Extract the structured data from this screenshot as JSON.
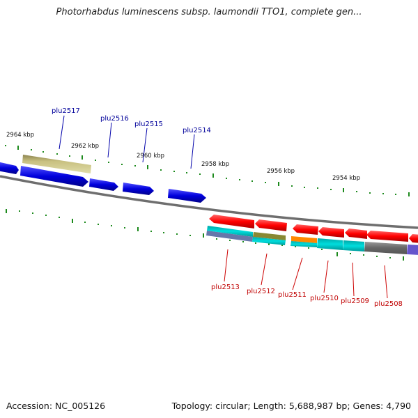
{
  "header": {
    "title": "Photorhabdus luminescens subsp. laumondii TTO1, complete gen..."
  },
  "footer": {
    "accession": "Accession: NC_005126",
    "summary": "Topology: circular; Length: 5,688,987 bp; Genes: 4,790"
  },
  "map": {
    "kbp_labels": [
      {
        "text": "2964 kbp"
      },
      {
        "text": "2962 kbp"
      },
      {
        "text": "2960 kbp"
      },
      {
        "text": "2958 kbp"
      },
      {
        "text": "2956 kbp"
      },
      {
        "text": "2954 kbp"
      }
    ],
    "forward_genes": [
      {
        "label": "plu2517",
        "color": "#0000dd"
      },
      {
        "label": "plu2516",
        "color": "#0000dd"
      },
      {
        "label": "plu2515",
        "color": "#0000dd"
      },
      {
        "label": "plu2514",
        "color": "#0000dd"
      }
    ],
    "reverse_genes": [
      {
        "label": "plu2513",
        "color": "#ff0000"
      },
      {
        "label": "plu2512",
        "color": "#ff0000"
      },
      {
        "label": "plu2511",
        "color": "#ff0000"
      },
      {
        "label": "plu2510",
        "color": "#ff0000"
      },
      {
        "label": "plu2509",
        "color": "#ff0000"
      },
      {
        "label": "plu2508",
        "color": "#ff0000"
      }
    ],
    "colors": {
      "backbone": "#8a8a8a",
      "tick": "#1d8a1d",
      "cog_khaki": "#c8c080",
      "cog_cyan": "#00cccc",
      "cog_orange": "#ff8800",
      "cog_olive": "#888833",
      "cog_gray": "#777777",
      "cog_purple": "#6655cc",
      "cog_slate": "#6677aa"
    }
  }
}
